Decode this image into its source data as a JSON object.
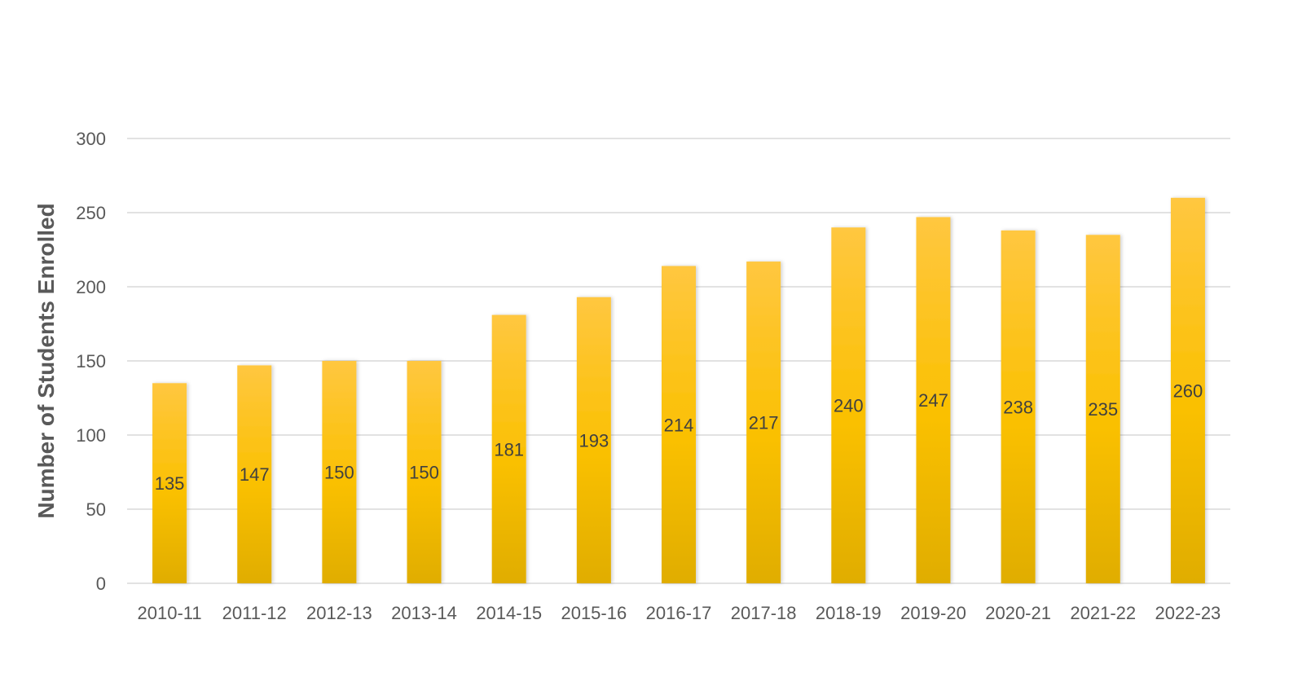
{
  "chart_data": {
    "type": "bar",
    "title": "",
    "xlabel": "",
    "ylabel": "Number of Students Enrolled",
    "categories": [
      "2010-11",
      "2011-12",
      "2012-13",
      "2013-14",
      "2014-15",
      "2015-16",
      "2016-17",
      "2017-18",
      "2018-19",
      "2019-20",
      "2020-21",
      "2021-22",
      "2022-23"
    ],
    "values": [
      135,
      147,
      150,
      150,
      181,
      193,
      214,
      217,
      240,
      247,
      238,
      235,
      260
    ],
    "ylim": [
      0,
      300
    ],
    "yticks": [
      0,
      50,
      100,
      150,
      200,
      250,
      300
    ],
    "grid": true,
    "legend": "none",
    "data_labels": true,
    "colors": {
      "bar_top": "#ffc740",
      "bar_mid": "#fac000",
      "bar_bottom": "#e0ad00",
      "grid": "#d9d9d9",
      "text": "#595959"
    }
  }
}
